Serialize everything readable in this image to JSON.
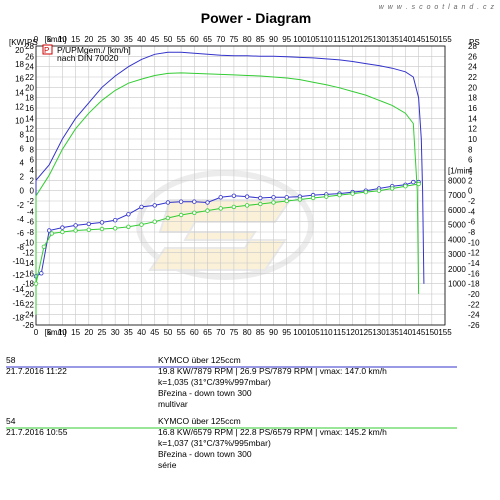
{
  "header": {
    "title": "Power - Diagram",
    "brand": "w w w . s c o o t l a n d . c z",
    "legend_line1": "P/UPMgem./ [km/h]",
    "legend_line2": "nach DIN 70020"
  },
  "colors": {
    "run1": "#3333cc",
    "run2": "#33cc33",
    "grid": "#c8c8c8"
  },
  "runs": [
    {
      "id": "58",
      "date": "21.7.2016   11:22",
      "model": "KYMCO über 125ccm",
      "stats": "19.8 KW/7879 RPM  |  26.9 PS/7879 RPM  |  vmax: 147.0 km/h",
      "conditions": "k=1,035 (31°C/39%/997mbar)",
      "rider": "Březina - down town 300",
      "note": "multivar",
      "color": "#3333cc"
    },
    {
      "id": "54",
      "date": "21.7.2016   10:55",
      "model": "KYMCO über 125ccm",
      "stats": "16.8 KW/6579 RPM  |  22.8 PS/6579 RPM  |  vmax: 145.2 km/h",
      "conditions": "k=1,037 (31°C/37%/995mbar)",
      "rider": "Březina - down town 300",
      "note": "série",
      "color": "#33cc33"
    }
  ],
  "chart_data": {
    "type": "line",
    "title": "Power - Diagram",
    "x_axis": {
      "unit": "[km/h]",
      "range": [
        0,
        155
      ],
      "ticks": [
        0,
        5,
        10,
        15,
        20,
        25,
        30,
        35,
        40,
        45,
        50,
        55,
        60,
        65,
        70,
        75,
        80,
        85,
        90,
        95,
        100,
        105,
        110,
        115,
        120,
        125,
        130,
        135,
        140,
        145,
        150,
        155
      ]
    },
    "y_left_kw": {
      "unit": "[KW]",
      "range": [
        -18,
        20
      ],
      "ticks": [
        20,
        18,
        16,
        14,
        12,
        10,
        8,
        6,
        4,
        2,
        0,
        -2,
        -4,
        -6,
        -8,
        -10,
        -12,
        -14,
        -16,
        -18
      ]
    },
    "y_left_ps": {
      "unit": "PS",
      "range": [
        -26,
        28
      ],
      "ticks": [
        28,
        26,
        24,
        22,
        20,
        18,
        16,
        14,
        12,
        10,
        8,
        6,
        4,
        2,
        0,
        -2,
        -4,
        -6,
        -8,
        -10,
        -12,
        -14,
        -16,
        -18,
        -20,
        -22,
        -24,
        -26
      ]
    },
    "y_right_ps": {
      "unit": "PS",
      "range": [
        -26,
        28
      ],
      "ticks": [
        28,
        26,
        24,
        22,
        20,
        18,
        16,
        14,
        12,
        10,
        8,
        6,
        4,
        2,
        0,
        -2,
        -4,
        -6,
        -8,
        -10,
        -12,
        -14,
        -16,
        -18,
        -20,
        -22,
        -24,
        -26
      ]
    },
    "y_right_rpm": {
      "unit": "[1/min]",
      "range": [
        0,
        10000
      ],
      "ticks": [
        8000,
        7000,
        6000,
        5000,
        4000,
        3000,
        2000,
        1000
      ]
    },
    "grid": true,
    "series": [
      {
        "name": "58",
        "color": "#3333cc",
        "power_ps": [
          [
            0,
            -24
          ],
          [
            0,
            2
          ],
          [
            5,
            5
          ],
          [
            10,
            10
          ],
          [
            15,
            14
          ],
          [
            20,
            17
          ],
          [
            25,
            20
          ],
          [
            30,
            22.2
          ],
          [
            35,
            24
          ],
          [
            40,
            25.4
          ],
          [
            45,
            26.4
          ],
          [
            50,
            26.8
          ],
          [
            55,
            26.8
          ],
          [
            60,
            26.6
          ],
          [
            65,
            26.4
          ],
          [
            70,
            26.2
          ],
          [
            75,
            26.1
          ],
          [
            80,
            26.1
          ],
          [
            85,
            26
          ],
          [
            90,
            26
          ],
          [
            95,
            25.9
          ],
          [
            100,
            25.8
          ],
          [
            105,
            25.7
          ],
          [
            110,
            25.5
          ],
          [
            115,
            25.3
          ],
          [
            120,
            25
          ],
          [
            125,
            24.6
          ],
          [
            130,
            24.2
          ],
          [
            135,
            23.7
          ],
          [
            140,
            23
          ],
          [
            143,
            22
          ],
          [
            145,
            18
          ],
          [
            146,
            10
          ],
          [
            146.5,
            0
          ],
          [
            147,
            -18
          ]
        ],
        "rpm": [
          [
            0,
            1500
          ],
          [
            2,
            1700
          ],
          [
            5,
            4600
          ],
          [
            10,
            4800
          ],
          [
            15,
            4950
          ],
          [
            20,
            5050
          ],
          [
            25,
            5150
          ],
          [
            30,
            5300
          ],
          [
            35,
            5700
          ],
          [
            40,
            6200
          ],
          [
            45,
            6300
          ],
          [
            50,
            6500
          ],
          [
            55,
            6550
          ],
          [
            60,
            6550
          ],
          [
            65,
            6500
          ],
          [
            70,
            6850
          ],
          [
            75,
            6950
          ],
          [
            80,
            6900
          ],
          [
            85,
            6800
          ],
          [
            90,
            6850
          ],
          [
            95,
            6850
          ],
          [
            100,
            6900
          ],
          [
            105,
            7000
          ],
          [
            110,
            7050
          ],
          [
            115,
            7100
          ],
          [
            120,
            7200
          ],
          [
            125,
            7300
          ],
          [
            130,
            7450
          ],
          [
            135,
            7600
          ],
          [
            140,
            7700
          ],
          [
            143,
            7880
          ],
          [
            145,
            7880
          ]
        ]
      },
      {
        "name": "54",
        "color": "#33cc33",
        "power_ps": [
          [
            0,
            -24
          ],
          [
            0,
            -1
          ],
          [
            5,
            3
          ],
          [
            10,
            8
          ],
          [
            15,
            12
          ],
          [
            20,
            15
          ],
          [
            25,
            17.5
          ],
          [
            30,
            19.4
          ],
          [
            35,
            20.8
          ],
          [
            40,
            21.6
          ],
          [
            45,
            22.3
          ],
          [
            50,
            22.7
          ],
          [
            55,
            22.8
          ],
          [
            60,
            22.7
          ],
          [
            65,
            22.6
          ],
          [
            70,
            22.5
          ],
          [
            75,
            22.4
          ],
          [
            80,
            22.3
          ],
          [
            85,
            22.2
          ],
          [
            90,
            22
          ],
          [
            95,
            21.8
          ],
          [
            100,
            21.5
          ],
          [
            105,
            21
          ],
          [
            110,
            20.5
          ],
          [
            115,
            19.9
          ],
          [
            120,
            19.2
          ],
          [
            125,
            18.5
          ],
          [
            130,
            17.5
          ],
          [
            135,
            16.5
          ],
          [
            140,
            15
          ],
          [
            143,
            13
          ],
          [
            144.5,
            0
          ],
          [
            145,
            -20
          ]
        ],
        "rpm": [
          [
            0,
            1000
          ],
          [
            3,
            3500
          ],
          [
            6,
            4400
          ],
          [
            10,
            4500
          ],
          [
            15,
            4600
          ],
          [
            20,
            4650
          ],
          [
            25,
            4700
          ],
          [
            30,
            4750
          ],
          [
            35,
            4850
          ],
          [
            40,
            5000
          ],
          [
            45,
            5200
          ],
          [
            50,
            5450
          ],
          [
            55,
            5650
          ],
          [
            60,
            5800
          ],
          [
            65,
            5950
          ],
          [
            70,
            6100
          ],
          [
            75,
            6200
          ],
          [
            80,
            6300
          ],
          [
            85,
            6400
          ],
          [
            90,
            6500
          ],
          [
            95,
            6600
          ],
          [
            100,
            6700
          ],
          [
            105,
            6800
          ],
          [
            110,
            6900
          ],
          [
            115,
            7000
          ],
          [
            120,
            7100
          ],
          [
            125,
            7200
          ],
          [
            130,
            7300
          ],
          [
            135,
            7450
          ],
          [
            140,
            7600
          ],
          [
            145,
            7750
          ]
        ]
      }
    ]
  }
}
